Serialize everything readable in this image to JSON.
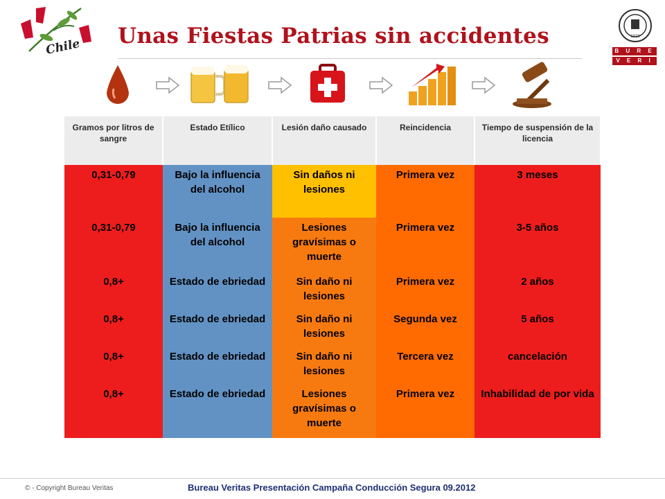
{
  "header": {
    "title": "Unas Fiestas Patrias sin accidentes",
    "logo_left_text": "Chile",
    "logo_right_words": [
      "B U R E A U",
      "V E R I T A S"
    ],
    "logo_right_seal_text": "1828"
  },
  "icons": [
    "blood-drop-icon",
    "beer-mugs-icon",
    "first-aid-kit-icon",
    "bar-chart-up-icon",
    "gavel-icon"
  ],
  "table": {
    "headers": [
      "Gramos por litros de sangre",
      "Estado Etílico",
      "Lesión daño causado",
      "Reincidencia",
      "Tiempo de suspensión de la licencia"
    ],
    "rows": [
      [
        "0,31-0,79",
        "Bajo la influencia del alcohol",
        "Sin daños ni lesiones",
        "Primera vez",
        "3 meses"
      ],
      [
        "0,31-0,79",
        "Bajo la influencia del alcohol",
        "Lesiones gravísimas o muerte",
        "Primera vez",
        "3-5 años"
      ],
      [
        "0,8+",
        "Estado de ebriedad",
        "Sin daño ni lesiones",
        "Primera vez",
        "2 años"
      ],
      [
        "0,8+",
        "Estado de ebriedad",
        "Sin daño ni lesiones",
        "Segunda vez",
        "5 años"
      ],
      [
        "0,8+",
        "Estado de ebriedad",
        "Sin daño ni lesiones",
        "Tercera vez",
        "cancelación"
      ],
      [
        "0,8+",
        "Estado de ebriedad",
        "Lesiones gravísimas o muerte",
        "Primera vez",
        "Inhabilidad de por vida"
      ]
    ]
  },
  "colors": {
    "title": "#b0121c",
    "col1": "#ee1d1d",
    "col2": "#6292c4",
    "col3_light": "#ffc000",
    "col3_severe": "#f77a10",
    "col4": "#ff6b00",
    "col5": "#ee1d1d"
  },
  "footer": {
    "copyright": "© - Copyright Bureau Veritas",
    "text": "Bureau Veritas Presentación Campaña Conducción Segura 09.2012"
  }
}
